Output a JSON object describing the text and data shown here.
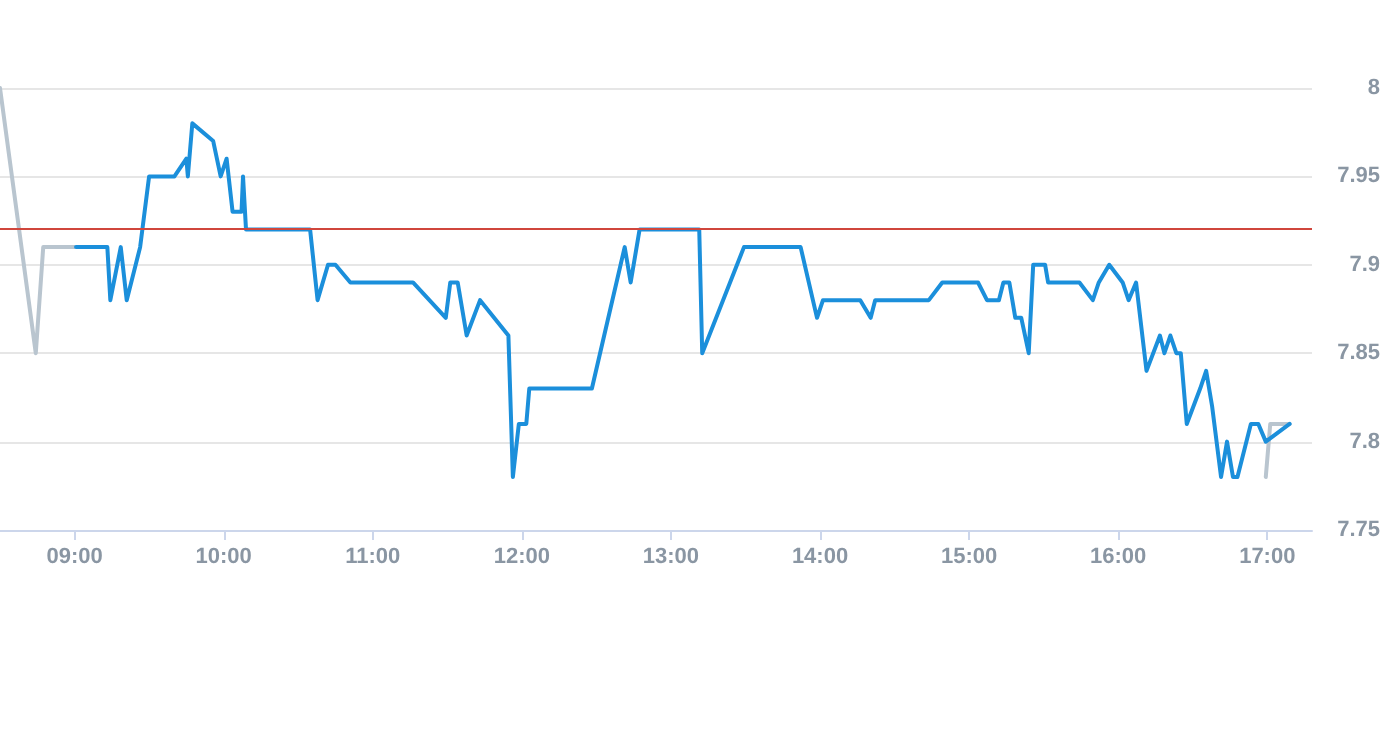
{
  "chart_data": {
    "type": "line",
    "marker": "none",
    "grid": "y",
    "xlim": [
      8.5,
      17.3
    ],
    "xticks": [
      {
        "value": 9,
        "label": "09:00"
      },
      {
        "value": 10,
        "label": "10:00"
      },
      {
        "value": 11,
        "label": "11:00"
      },
      {
        "value": 12,
        "label": "12:00"
      },
      {
        "value": 13,
        "label": "13:00"
      },
      {
        "value": 14,
        "label": "14:00"
      },
      {
        "value": 15,
        "label": "15:00"
      },
      {
        "value": 16,
        "label": "16:00"
      },
      {
        "value": 17,
        "label": "17:00"
      }
    ],
    "ylim": [
      7.75,
      8
    ],
    "yticks": [
      7.75,
      7.8,
      7.85,
      7.9,
      7.95,
      8
    ],
    "ref_lines": [
      {
        "axis": "y",
        "value": 7.92,
        "color": "#d0463c"
      }
    ],
    "series": [
      {
        "color": "#b9c5cf",
        "x": [
          8.5,
          8.74,
          8.79,
          9.0
        ],
        "values": [
          8.0,
          7.85,
          7.91,
          7.91
        ]
      },
      {
        "color": "#b9c5cf",
        "x": [
          16.99,
          17.02,
          17.15
        ],
        "values": [
          7.78,
          7.81,
          7.81
        ]
      },
      {
        "color": "#1b8fdb",
        "x": [
          9.01,
          9.22,
          9.24,
          9.31,
          9.35,
          9.44,
          9.5,
          9.67,
          9.75,
          9.76,
          9.79,
          9.93,
          9.98,
          10.02,
          10.06,
          10.12,
          10.13,
          10.15,
          10.58,
          10.63,
          10.7,
          10.75,
          10.85,
          11.27,
          11.49,
          11.52,
          11.57,
          11.63,
          11.72,
          11.91,
          11.94,
          11.98,
          12.03,
          12.05,
          12.47,
          12.69,
          12.73,
          12.79,
          13.19,
          13.21,
          13.49,
          13.87,
          13.98,
          14.02,
          14.27,
          14.34,
          14.37,
          14.73,
          14.82,
          15.06,
          15.12,
          15.2,
          15.23,
          15.27,
          15.31,
          15.35,
          15.4,
          15.43,
          15.51,
          15.53,
          15.74,
          15.83,
          15.87,
          15.94,
          16.03,
          16.07,
          16.12,
          16.19,
          16.28,
          16.31,
          16.35,
          16.39,
          16.42,
          16.46,
          16.55,
          16.59,
          16.63,
          16.69,
          16.73,
          16.77,
          16.8,
          16.89,
          16.94,
          16.99,
          17.15
        ],
        "values": [
          7.91,
          7.91,
          7.88,
          7.91,
          7.88,
          7.91,
          7.95,
          7.95,
          7.96,
          7.95,
          7.98,
          7.97,
          7.95,
          7.96,
          7.93,
          7.93,
          7.95,
          7.92,
          7.92,
          7.88,
          7.9,
          7.9,
          7.89,
          7.89,
          7.87,
          7.89,
          7.89,
          7.86,
          7.88,
          7.86,
          7.78,
          7.81,
          7.81,
          7.83,
          7.83,
          7.91,
          7.89,
          7.92,
          7.92,
          7.85,
          7.91,
          7.91,
          7.87,
          7.88,
          7.88,
          7.87,
          7.88,
          7.88,
          7.89,
          7.89,
          7.88,
          7.88,
          7.89,
          7.89,
          7.87,
          7.87,
          7.85,
          7.9,
          7.9,
          7.89,
          7.89,
          7.88,
          7.89,
          7.9,
          7.89,
          7.88,
          7.89,
          7.84,
          7.86,
          7.85,
          7.86,
          7.85,
          7.85,
          7.81,
          7.83,
          7.84,
          7.82,
          7.78,
          7.8,
          7.78,
          7.78,
          7.81,
          7.81,
          7.8,
          7.81
        ]
      }
    ]
  }
}
